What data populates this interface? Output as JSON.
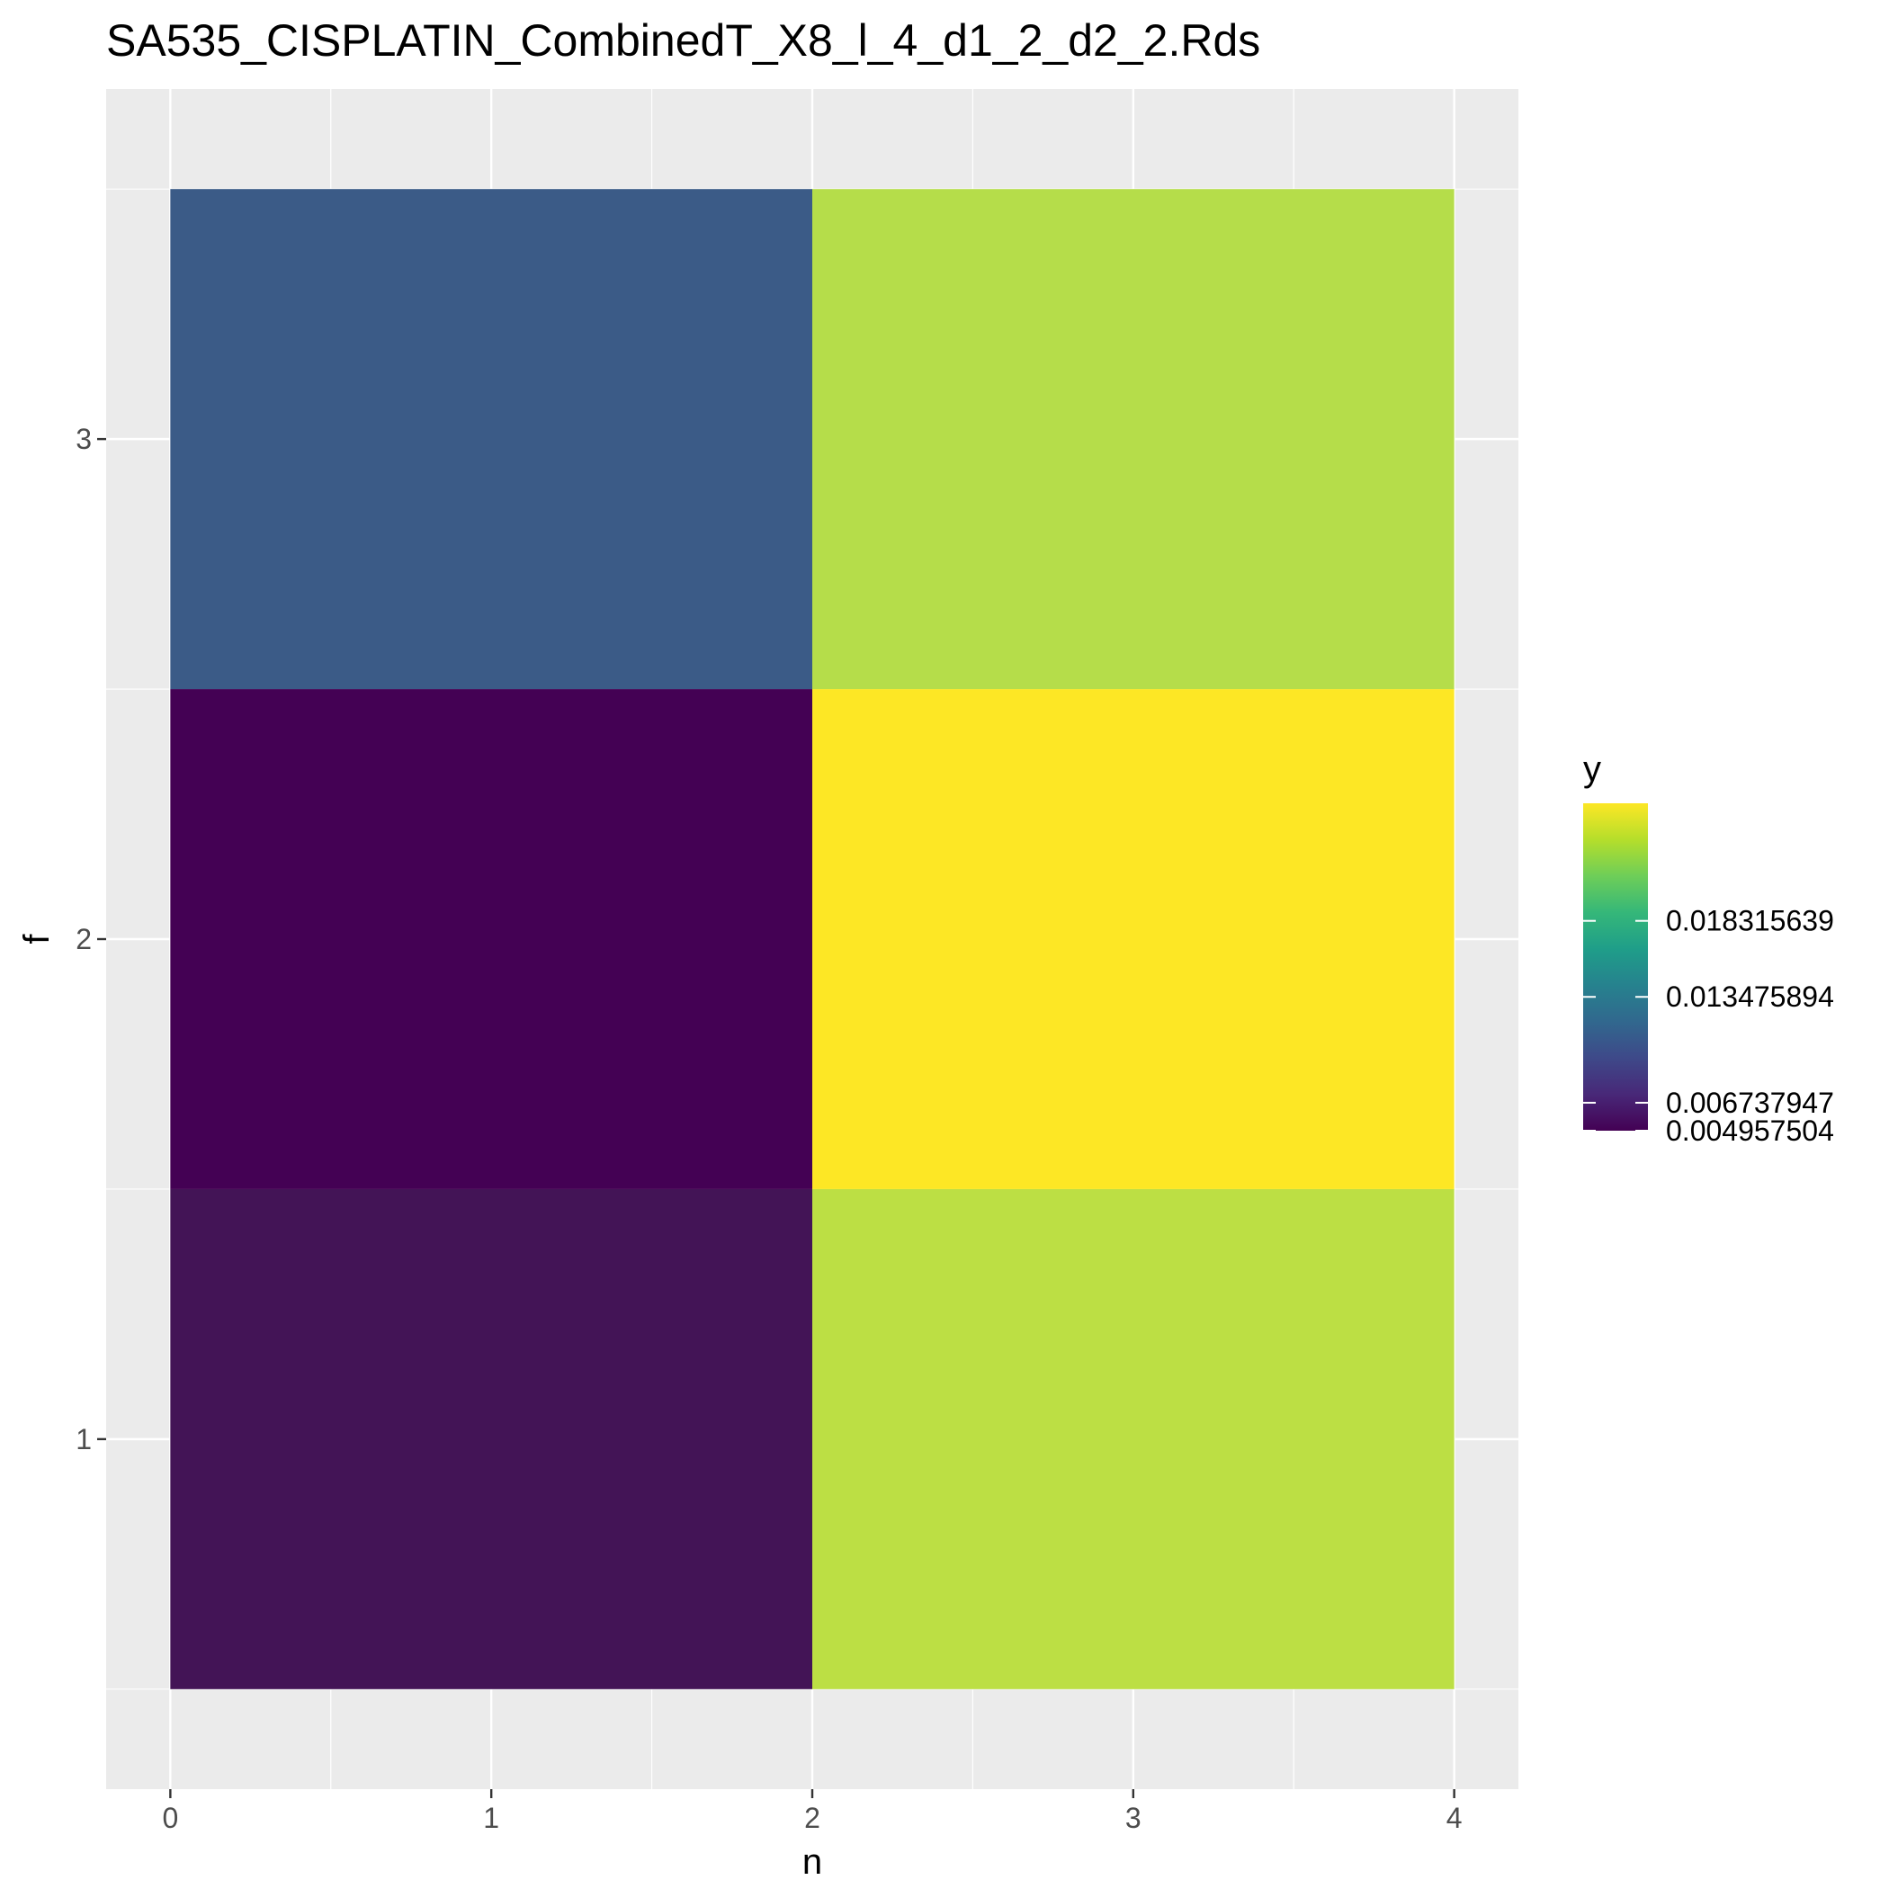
{
  "chart_data": {
    "type": "heatmap",
    "title": "SA535_CISPLATIN_CombinedT_X8_l_4_d1_2_d2_2.Rds",
    "xlabel": "n",
    "ylabel": "f",
    "xlim": [
      -0.2,
      4.2
    ],
    "ylim": [
      0.3,
      3.7
    ],
    "x_ticks": [
      0,
      1,
      2,
      3,
      4
    ],
    "y_ticks": [
      1,
      2,
      3
    ],
    "x_tick_labels": [
      "0",
      "1",
      "2",
      "3",
      "4"
    ],
    "y_tick_labels": [
      "1",
      "2",
      "3"
    ],
    "x_minor_breaks": [
      0.5,
      1.5,
      2.5,
      3.5
    ],
    "y_minor_breaks": [
      0.5,
      1.5,
      2.5,
      3.5
    ],
    "grid": true,
    "colorscale": "viridis",
    "panel_background": "#ebebeb",
    "cells": [
      {
        "x_min": 0,
        "x_max": 2,
        "y_min": 0.5,
        "y_max": 1.5,
        "value": 0.0058,
        "color": "#431456"
      },
      {
        "x_min": 0,
        "x_max": 2,
        "y_min": 1.5,
        "y_max": 2.5,
        "value": 0.004957504,
        "color": "#440154"
      },
      {
        "x_min": 0,
        "x_max": 2,
        "y_min": 2.5,
        "y_max": 3.5,
        "value": 0.0092,
        "color": "#3b5b87"
      },
      {
        "x_min": 2,
        "x_max": 4,
        "y_min": 0.5,
        "y_max": 1.5,
        "value": 0.0215,
        "color": "#bcdf44"
      },
      {
        "x_min": 2,
        "x_max": 4,
        "y_min": 1.5,
        "y_max": 2.5,
        "value": 0.0258,
        "color": "#fde725"
      },
      {
        "x_min": 2,
        "x_max": 4,
        "y_min": 2.5,
        "y_max": 3.5,
        "value": 0.0212,
        "color": "#b5dd4a"
      }
    ],
    "legend": {
      "title": "y",
      "position": "right",
      "min": 0.004957504,
      "max": 0.0258,
      "breaks": [
        0.004957504,
        0.006737947,
        0.013475894,
        0.018315639
      ],
      "labels": [
        "0.004957504",
        "0.006737947",
        "0.013475894",
        "0.018315639"
      ]
    }
  }
}
